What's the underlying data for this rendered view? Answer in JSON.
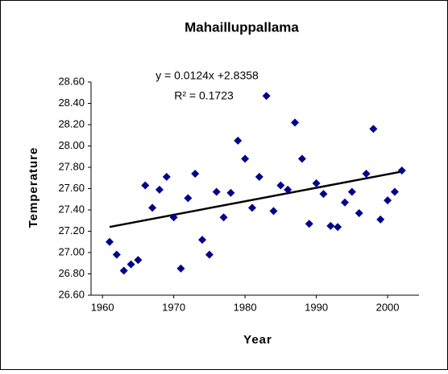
{
  "chart_data": {
    "type": "scatter",
    "title": "Mahailluppallama",
    "x_label": "Year",
    "y_label": "Temperature",
    "annotations": [
      "y = 0.0124x +2.8358",
      "R² = 0.1723"
    ],
    "x": [
      1961,
      1962,
      1963,
      1964,
      1965,
      1966,
      1967,
      1968,
      1969,
      1970,
      1971,
      1972,
      1973,
      1974,
      1975,
      1976,
      1977,
      1978,
      1979,
      1980,
      1981,
      1982,
      1983,
      1984,
      1985,
      1986,
      1987,
      1988,
      1989,
      1990,
      1991,
      1992,
      1993,
      1994,
      1995,
      1996,
      1997,
      1998,
      1999,
      2000,
      2001,
      2002
    ],
    "series": [
      {
        "name": "Temperature",
        "color": "#00008b",
        "values": [
          27.1,
          26.98,
          26.83,
          26.89,
          26.93,
          27.63,
          27.42,
          27.59,
          27.71,
          27.33,
          26.85,
          27.51,
          27.74,
          27.12,
          26.98,
          27.57,
          27.33,
          27.56,
          28.05,
          27.88,
          27.42,
          27.71,
          28.47,
          27.39,
          27.63,
          27.59,
          28.22,
          27.88,
          27.27,
          27.65,
          27.55,
          27.25,
          27.24,
          27.47,
          27.57,
          27.37,
          27.74,
          28.16,
          27.31,
          27.49,
          27.57,
          27.77
        ]
      }
    ],
    "trendline": {
      "x": [
        1961,
        2002
      ],
      "values": [
        27.24,
        27.76
      ],
      "color": "#000000"
    },
    "xlim": [
      1958.4,
      2004.4
    ],
    "ylim": [
      26.6,
      28.6
    ],
    "xticks": [
      1960,
      1970,
      1980,
      1990,
      2000
    ],
    "yticks": [
      {
        "value": 26.6,
        "label": "26.60"
      },
      {
        "value": 26.8,
        "label": "26.80"
      },
      {
        "value": 27.0,
        "label": "27.00"
      },
      {
        "value": 27.2,
        "label": "27.20"
      },
      {
        "value": 27.4,
        "label": "27.40"
      },
      {
        "value": 27.6,
        "label": "27.60"
      },
      {
        "value": 27.8,
        "label": "27.80"
      },
      {
        "value": 28.0,
        "label": "28.00"
      },
      {
        "value": 28.2,
        "label": "28.20"
      },
      {
        "value": 28.4,
        "label": "28.40"
      },
      {
        "value": 28.6,
        "label": "28.60"
      }
    ],
    "grid": false
  }
}
